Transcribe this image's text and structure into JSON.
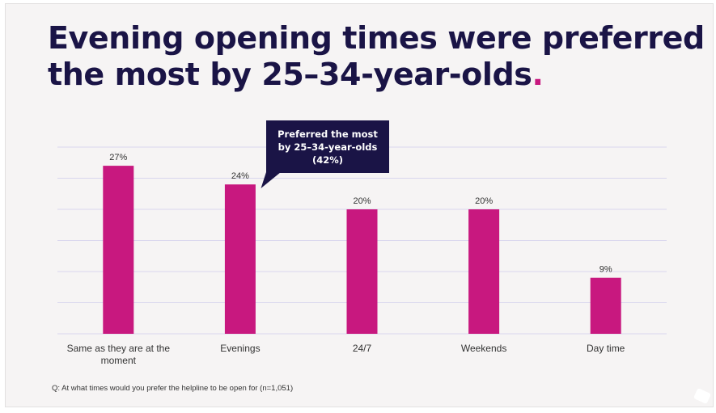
{
  "title": {
    "line1": "Evening opening times were preferred",
    "line2": "the most by 25–34-year-olds",
    "period": "."
  },
  "callout": "Preferred the most by 25–34-year-olds (42%)",
  "footnote": "Q: At what times would you prefer the helpline to be open for (n=1,051)",
  "colors": {
    "bar": "#c8187f",
    "title": "#1a1446",
    "gridline": "#d9d6ee",
    "callout_bg": "#1a1446"
  },
  "chart_data": {
    "type": "bar",
    "categories": [
      "Same as they are at the moment",
      "Evenings",
      "24/7",
      "Weekends",
      "Day time"
    ],
    "values": [
      27,
      24,
      20,
      20,
      9
    ],
    "value_labels": [
      "27%",
      "24%",
      "20%",
      "20%",
      "9%"
    ],
    "ylim": [
      0,
      30
    ],
    "grid": true,
    "xlabel": "",
    "ylabel": ""
  }
}
